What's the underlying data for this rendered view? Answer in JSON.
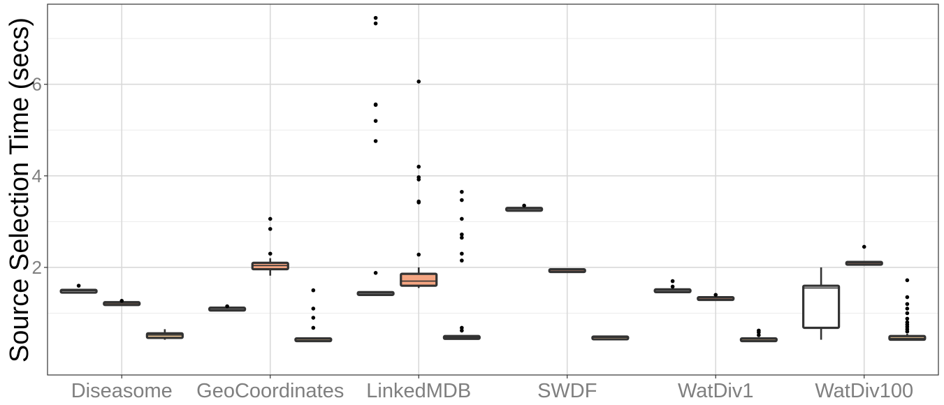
{
  "chart_data": {
    "type": "box",
    "title": "",
    "xlabel": "",
    "ylabel": "Source Selection Time (secs)",
    "ylim": [
      -0.35,
      7.75
    ],
    "yticks": [
      2,
      4,
      6
    ],
    "grid": true,
    "categories": [
      "Diseasome",
      "GeoCoordinates",
      "LinkedMDB",
      "SWDF",
      "WatDiv1",
      "WatDiv100"
    ],
    "series": [
      {
        "fill": "#ffffff",
        "boxes": [
          {
            "category": "Diseasome",
            "q1": 1.47,
            "median": 1.49,
            "q3": 1.51,
            "whisker_low": 1.46,
            "whisker_high": 1.53,
            "outliers": [
              1.6
            ]
          },
          {
            "category": "GeoCoordinates",
            "q1": 1.08,
            "median": 1.1,
            "q3": 1.12,
            "whisker_low": 1.07,
            "whisker_high": 1.13,
            "outliers": [
              1.15
            ]
          },
          {
            "category": "LinkedMDB",
            "q1": 1.42,
            "median": 1.44,
            "q3": 1.46,
            "whisker_low": 1.41,
            "whisker_high": 1.47,
            "outliers": [
              1.88,
              4.76,
              5.2,
              5.55,
              5.56,
              7.33,
              7.45
            ]
          },
          {
            "category": "SWDF",
            "q1": 3.26,
            "median": 3.28,
            "q3": 3.3,
            "whisker_low": 3.25,
            "whisker_high": 3.32,
            "outliers": [
              3.35
            ]
          },
          {
            "category": "WatDiv1",
            "q1": 1.48,
            "median": 1.5,
            "q3": 1.52,
            "whisker_low": 1.46,
            "whisker_high": 1.54,
            "outliers": [
              1.58,
              1.7
            ]
          },
          {
            "category": "WatDiv100",
            "q1": 0.68,
            "median": 1.55,
            "q3": 1.6,
            "whisker_low": 0.42,
            "whisker_high": 2.0,
            "outliers": []
          }
        ]
      },
      {
        "fill": "#f4a582",
        "boxes": [
          {
            "category": "Diseasome",
            "q1": 1.2,
            "median": 1.22,
            "q3": 1.24,
            "whisker_low": 1.19,
            "whisker_high": 1.25,
            "outliers": [
              1.27
            ]
          },
          {
            "category": "GeoCoordinates",
            "q1": 1.96,
            "median": 2.04,
            "q3": 2.1,
            "whisker_low": 1.82,
            "whisker_high": 2.2,
            "outliers": [
              2.3,
              2.84,
              3.06
            ]
          },
          {
            "category": "LinkedMDB",
            "q1": 1.6,
            "median": 1.7,
            "q3": 1.86,
            "whisker_low": 1.55,
            "whisker_high": 2.0,
            "outliers": [
              2.28,
              3.42,
              3.44,
              3.92,
              3.97,
              4.2,
              6.06
            ]
          },
          {
            "category": "SWDF",
            "q1": 1.92,
            "median": 1.94,
            "q3": 1.96,
            "whisker_low": 1.91,
            "whisker_high": 1.98,
            "outliers": []
          },
          {
            "category": "WatDiv1",
            "q1": 1.31,
            "median": 1.33,
            "q3": 1.35,
            "whisker_low": 1.3,
            "whisker_high": 1.37,
            "outliers": [
              1.4
            ]
          },
          {
            "category": "WatDiv100",
            "q1": 2.08,
            "median": 2.1,
            "q3": 2.12,
            "whisker_low": 2.07,
            "whisker_high": 2.14,
            "outliers": [
              2.45
            ]
          }
        ]
      },
      {
        "fill": "#fdd49e",
        "boxes": [
          {
            "category": "Diseasome",
            "q1": 0.46,
            "median": 0.52,
            "q3": 0.56,
            "whisker_low": 0.42,
            "whisker_high": 0.65,
            "outliers": []
          },
          {
            "category": "GeoCoordinates",
            "q1": 0.41,
            "median": 0.43,
            "q3": 0.45,
            "whisker_low": 0.4,
            "whisker_high": 0.47,
            "outliers": [
              0.68,
              0.9,
              1.1,
              1.5
            ]
          },
          {
            "category": "LinkedMDB",
            "q1": 0.45,
            "median": 0.47,
            "q3": 0.5,
            "whisker_low": 0.43,
            "whisker_high": 0.52,
            "outliers": [
              0.62,
              0.68,
              2.15,
              2.3,
              2.65,
              2.72,
              3.06,
              3.47,
              3.65
            ]
          },
          {
            "category": "SWDF",
            "q1": 0.45,
            "median": 0.47,
            "q3": 0.49,
            "whisker_low": 0.44,
            "whisker_high": 0.5,
            "outliers": []
          },
          {
            "category": "WatDiv1",
            "q1": 0.41,
            "median": 0.43,
            "q3": 0.45,
            "whisker_low": 0.4,
            "whisker_high": 0.47,
            "outliers": [
              0.52,
              0.58,
              0.62
            ]
          },
          {
            "category": "WatDiv100",
            "q1": 0.42,
            "median": 0.45,
            "q3": 0.5,
            "whisker_low": 0.4,
            "whisker_high": 0.55,
            "outliers": [
              0.6,
              0.65,
              0.7,
              0.75,
              0.8,
              0.88,
              1.0,
              1.1,
              1.2,
              1.35,
              1.72
            ]
          }
        ]
      }
    ]
  }
}
